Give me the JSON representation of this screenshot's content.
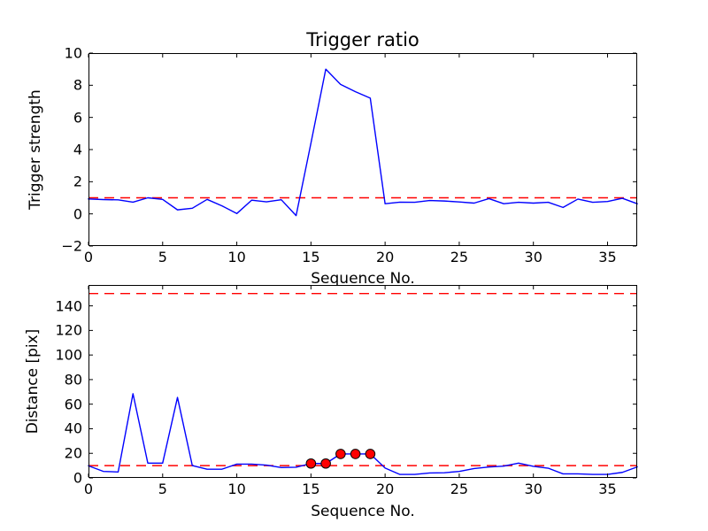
{
  "figure": {
    "background": "#ffffff",
    "line_color": "#0000ff",
    "threshold_color": "#ff0000",
    "marker_fill": "#ff0000",
    "marker_edge": "#000000",
    "spine_color": "#000000"
  },
  "chart_data": [
    {
      "type": "line",
      "title": "Trigger ratio",
      "xlabel": "Sequence No.",
      "ylabel": "Trigger strength",
      "xlim": [
        0,
        37
      ],
      "ylim": [
        -2,
        10
      ],
      "xticks": [
        0,
        5,
        10,
        15,
        20,
        25,
        30,
        35
      ],
      "yticks": [
        -2,
        0,
        2,
        4,
        6,
        8,
        10
      ],
      "grid": false,
      "legend": null,
      "x": [
        0,
        1,
        2,
        3,
        4,
        5,
        6,
        7,
        8,
        9,
        10,
        11,
        12,
        13,
        14,
        15,
        16,
        17,
        18,
        19,
        20,
        21,
        22,
        23,
        24,
        25,
        26,
        27,
        28,
        29,
        30,
        31,
        32,
        33,
        34,
        35,
        36,
        37
      ],
      "series": [
        {
          "name": "trigger-strength",
          "color": "#0000ff",
          "linestyle": "solid",
          "values": [
            0.93,
            0.89,
            0.87,
            0.73,
            1.0,
            0.9,
            0.25,
            0.35,
            0.9,
            0.5,
            0.02,
            0.85,
            0.75,
            0.88,
            -0.11,
            4.4,
            9.0,
            8.05,
            7.6,
            7.2,
            0.63,
            0.73,
            0.72,
            0.83,
            0.8,
            0.74,
            0.67,
            0.95,
            0.63,
            0.72,
            0.67,
            0.72,
            0.4,
            0.92,
            0.72,
            0.77,
            0.97,
            0.63
          ]
        }
      ],
      "reference_lines": [
        {
          "y": 1,
          "color": "#ff0000",
          "linestyle": "dashed"
        }
      ],
      "markers": []
    },
    {
      "type": "line",
      "title": "",
      "xlabel": "Sequence No.",
      "ylabel": "Distance [pix]",
      "xlim": [
        0,
        37
      ],
      "ylim": [
        0,
        157
      ],
      "xticks": [
        0,
        5,
        10,
        15,
        20,
        25,
        30,
        35
      ],
      "yticks": [
        0,
        20,
        40,
        60,
        80,
        100,
        120,
        140
      ],
      "grid": false,
      "legend": null,
      "x": [
        0,
        1,
        2,
        3,
        4,
        5,
        6,
        7,
        8,
        9,
        10,
        11,
        12,
        13,
        14,
        15,
        16,
        17,
        18,
        19,
        20,
        21,
        22,
        23,
        24,
        25,
        26,
        27,
        28,
        29,
        30,
        31,
        32,
        33,
        34,
        35,
        36,
        37
      ],
      "series": [
        {
          "name": "distance",
          "color": "#0000ff",
          "linestyle": "solid",
          "values": [
            9.8,
            5.3,
            4.8,
            68.5,
            12,
            12,
            65.5,
            10,
            7.1,
            7.1,
            11.2,
            11.2,
            10.4,
            8.4,
            8.7,
            11.7,
            11.7,
            19.5,
            19.5,
            19.5,
            8,
            2.8,
            2.8,
            4,
            4.2,
            5.3,
            7.6,
            8.9,
            9.6,
            12,
            9.4,
            7.9,
            3.3,
            3.3,
            2.8,
            2.8,
            4.5,
            8.9
          ]
        }
      ],
      "reference_lines": [
        {
          "y": 10,
          "color": "#ff0000",
          "linestyle": "dashed"
        },
        {
          "y": 150,
          "color": "#ff0000",
          "linestyle": "dashed"
        }
      ],
      "markers": [
        {
          "name": "triggered-points",
          "color": "#ff0000",
          "edge_color": "#000000",
          "x": [
            15,
            16,
            17,
            18,
            19
          ],
          "y": [
            11.7,
            11.7,
            19.5,
            19.5,
            19.5
          ]
        }
      ]
    }
  ]
}
